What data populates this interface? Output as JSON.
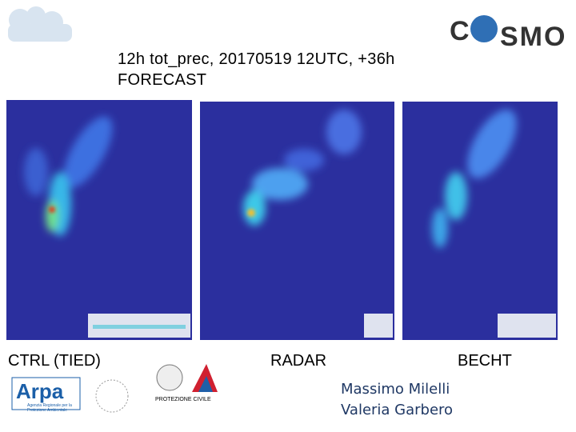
{
  "header": {
    "title_lines": [
      "12h tot_prec, 20170519 12UTC, +36h",
      "FORECAST"
    ],
    "logo": "SMO"
  },
  "panels": [
    {
      "label": "CTRL (TIED)"
    },
    {
      "label": "RADAR"
    },
    {
      "label": "BECHT"
    }
  ],
  "authors": [
    "Massimo Milelli",
    "Valeria Garbero"
  ],
  "logos": {
    "arpa": "Arpa",
    "arpa_sub": "Agenzia Regionale per la Protezione Ambientale",
    "civil": "PROTEZIONE CIVILE"
  }
}
